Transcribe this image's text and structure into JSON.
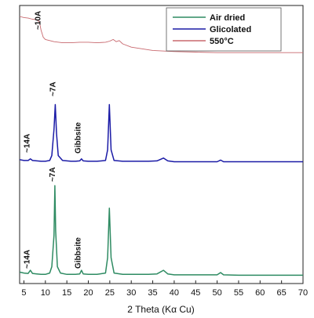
{
  "chart_data": {
    "type": "line",
    "xlabel": "2 Theta (Kα Cu)",
    "ylabel": "",
    "title": "",
    "xlim": [
      4,
      70
    ],
    "x_ticks": [
      5,
      10,
      15,
      20,
      25,
      30,
      35,
      40,
      45,
      50,
      55,
      60,
      65,
      70
    ],
    "legend_position": "top-right",
    "series": [
      {
        "name": "Air dried",
        "color": "#2e8b62",
        "x": [
          4,
          5,
          6,
          6.5,
          7,
          8,
          9,
          10,
          11,
          11.5,
          12,
          12.2,
          12.4,
          12.8,
          13.5,
          15,
          17,
          18,
          18.4,
          18.8,
          20,
          22,
          24,
          24.5,
          24.9,
          25.3,
          26,
          28,
          30,
          34,
          36,
          37.5,
          38.5,
          40,
          45,
          50,
          50.8,
          51.5,
          55,
          60,
          65,
          70
        ],
        "y": [
          4,
          3,
          2.5,
          6,
          2.5,
          2,
          1.5,
          1.5,
          3,
          10,
          45,
          100,
          50,
          10,
          3,
          1.5,
          1.5,
          2,
          6,
          2,
          1.5,
          1.5,
          3,
          20,
          75,
          20,
          3,
          1.5,
          1.5,
          1.5,
          2,
          6,
          2,
          1,
          1,
          1,
          3.5,
          1,
          0.5,
          0.5,
          0.5,
          0.5
        ]
      },
      {
        "name": "Glicolated",
        "color": "#1a1aa6",
        "x": [
          4,
          5,
          6,
          6.5,
          7,
          8,
          9,
          10,
          11,
          11.5,
          12,
          12.3,
          12.6,
          13,
          14,
          16,
          17,
          18,
          18.4,
          18.8,
          20,
          22,
          24,
          24.5,
          24.9,
          25.3,
          26,
          28,
          30,
          34,
          36,
          37.5,
          38.5,
          40,
          45,
          50,
          50.8,
          51.5,
          55,
          60,
          65,
          70
        ],
        "y": [
          3,
          2,
          2,
          4,
          2,
          1.5,
          1,
          1,
          2,
          8,
          40,
          70,
          35,
          8,
          2,
          1,
          1,
          1.5,
          4,
          1.5,
          1,
          1,
          2,
          15,
          70,
          15,
          2,
          1,
          1,
          1,
          1.5,
          5,
          1.5,
          0.5,
          0.5,
          0.5,
          2.5,
          0.5,
          0.5,
          0.5,
          0.5,
          0.5
        ]
      },
      {
        "name": "550°C",
        "color": "#c8686e",
        "x": [
          4,
          5,
          6,
          7,
          8,
          8.6,
          9,
          9.5,
          10,
          12,
          14,
          16,
          18,
          20,
          22,
          24,
          25,
          25.8,
          26.5,
          27.2,
          28,
          30,
          35,
          40,
          45,
          50,
          55,
          60,
          65,
          70
        ],
        "y": [
          90,
          88,
          87,
          85,
          84,
          80,
          65,
          52,
          48,
          44,
          42,
          42,
          43,
          43,
          42,
          43,
          45,
          48,
          44,
          46,
          40,
          34,
          28,
          26,
          25,
          24,
          24,
          24,
          24,
          24
        ]
      }
    ],
    "annotations": [
      {
        "text": "~10A",
        "x": 8.8
      },
      {
        "text": "~7A",
        "x": 12.3
      },
      {
        "text": "~14A",
        "x": 6.3
      },
      {
        "text": "Gibbsite",
        "x": 18.2
      },
      {
        "text": "~7A",
        "x": 12.2
      },
      {
        "text": "~14A",
        "x": 6.3
      },
      {
        "text": "Gibbsite",
        "x": 18.2
      }
    ]
  }
}
